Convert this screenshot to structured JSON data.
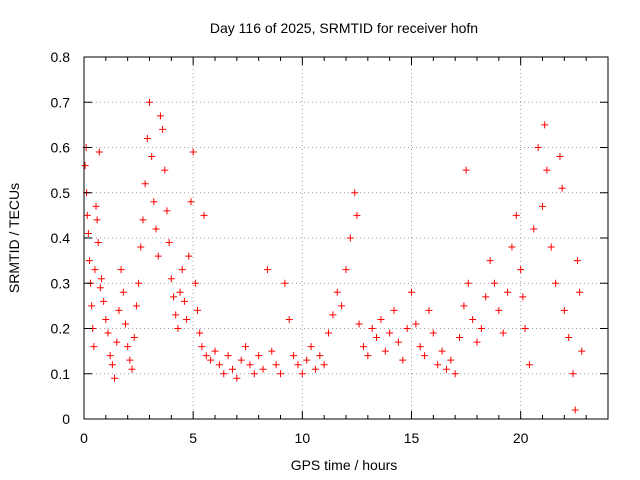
{
  "chart_data": {
    "type": "scatter",
    "title": "Day 116 of 2025, SRMTID for receiver hofn",
    "xlabel": "GPS time / hours",
    "ylabel": "SRMTID / TECUs",
    "xlim": [
      0,
      24
    ],
    "ylim": [
      0,
      0.8
    ],
    "xticks": [
      0,
      5,
      10,
      15,
      20
    ],
    "yticks": [
      0,
      0.1,
      0.2,
      0.3,
      0.4,
      0.5,
      0.6,
      0.7,
      0.8
    ],
    "xtick_labels": [
      "0",
      "5",
      "10",
      "15",
      "20"
    ],
    "ytick_labels": [
      "0",
      "0.1",
      "0.2",
      "0.3",
      "0.4",
      "0.5",
      "0.6",
      "0.7",
      "0.8"
    ],
    "grid": true,
    "marker": "+",
    "color": "#ff0000",
    "series": [
      {
        "name": "SRMTID",
        "points": [
          [
            0.05,
            0.56
          ],
          [
            0.1,
            0.6
          ],
          [
            0.12,
            0.5
          ],
          [
            0.15,
            0.45
          ],
          [
            0.2,
            0.41
          ],
          [
            0.25,
            0.35
          ],
          [
            0.3,
            0.3
          ],
          [
            0.35,
            0.25
          ],
          [
            0.4,
            0.2
          ],
          [
            0.45,
            0.16
          ],
          [
            0.5,
            0.33
          ],
          [
            0.55,
            0.47
          ],
          [
            0.6,
            0.44
          ],
          [
            0.65,
            0.39
          ],
          [
            0.7,
            0.59
          ],
          [
            0.75,
            0.29
          ],
          [
            0.8,
            0.31
          ],
          [
            0.9,
            0.26
          ],
          [
            1.0,
            0.22
          ],
          [
            1.1,
            0.19
          ],
          [
            1.2,
            0.14
          ],
          [
            1.3,
            0.12
          ],
          [
            1.4,
            0.09
          ],
          [
            1.5,
            0.17
          ],
          [
            1.6,
            0.24
          ],
          [
            1.7,
            0.33
          ],
          [
            1.8,
            0.28
          ],
          [
            1.9,
            0.21
          ],
          [
            2.0,
            0.16
          ],
          [
            2.1,
            0.13
          ],
          [
            2.2,
            0.11
          ],
          [
            2.3,
            0.18
          ],
          [
            2.4,
            0.25
          ],
          [
            2.5,
            0.3
          ],
          [
            2.6,
            0.38
          ],
          [
            2.7,
            0.44
          ],
          [
            2.8,
            0.52
          ],
          [
            2.9,
            0.62
          ],
          [
            3.0,
            0.7
          ],
          [
            3.1,
            0.58
          ],
          [
            3.2,
            0.48
          ],
          [
            3.3,
            0.42
          ],
          [
            3.4,
            0.36
          ],
          [
            3.5,
            0.67
          ],
          [
            3.6,
            0.64
          ],
          [
            3.7,
            0.55
          ],
          [
            3.8,
            0.46
          ],
          [
            3.9,
            0.39
          ],
          [
            4.0,
            0.31
          ],
          [
            4.1,
            0.27
          ],
          [
            4.2,
            0.23
          ],
          [
            4.3,
            0.2
          ],
          [
            4.4,
            0.28
          ],
          [
            4.5,
            0.33
          ],
          [
            4.6,
            0.26
          ],
          [
            4.7,
            0.22
          ],
          [
            4.8,
            0.36
          ],
          [
            4.9,
            0.48
          ],
          [
            5.0,
            0.59
          ],
          [
            5.1,
            0.3
          ],
          [
            5.2,
            0.24
          ],
          [
            5.3,
            0.19
          ],
          [
            5.4,
            0.16
          ],
          [
            5.5,
            0.45
          ],
          [
            5.6,
            0.14
          ],
          [
            5.8,
            0.13
          ],
          [
            6.0,
            0.15
          ],
          [
            6.2,
            0.12
          ],
          [
            6.4,
            0.1
          ],
          [
            6.6,
            0.14
          ],
          [
            6.8,
            0.11
          ],
          [
            7.0,
            0.09
          ],
          [
            7.2,
            0.13
          ],
          [
            7.4,
            0.16
          ],
          [
            7.6,
            0.12
          ],
          [
            7.8,
            0.1
          ],
          [
            8.0,
            0.14
          ],
          [
            8.2,
            0.11
          ],
          [
            8.4,
            0.33
          ],
          [
            8.6,
            0.15
          ],
          [
            8.8,
            0.12
          ],
          [
            9.0,
            0.1
          ],
          [
            9.2,
            0.3
          ],
          [
            9.4,
            0.22
          ],
          [
            9.6,
            0.14
          ],
          [
            9.8,
            0.12
          ],
          [
            10.0,
            0.1
          ],
          [
            10.2,
            0.13
          ],
          [
            10.4,
            0.16
          ],
          [
            10.6,
            0.11
          ],
          [
            10.8,
            0.14
          ],
          [
            11.0,
            0.12
          ],
          [
            11.2,
            0.19
          ],
          [
            11.4,
            0.23
          ],
          [
            11.6,
            0.28
          ],
          [
            11.8,
            0.25
          ],
          [
            12.0,
            0.33
          ],
          [
            12.2,
            0.4
          ],
          [
            12.4,
            0.5
          ],
          [
            12.5,
            0.45
          ],
          [
            12.6,
            0.21
          ],
          [
            12.8,
            0.16
          ],
          [
            13.0,
            0.14
          ],
          [
            13.2,
            0.2
          ],
          [
            13.4,
            0.18
          ],
          [
            13.6,
            0.22
          ],
          [
            13.8,
            0.15
          ],
          [
            14.0,
            0.19
          ],
          [
            14.2,
            0.24
          ],
          [
            14.4,
            0.17
          ],
          [
            14.6,
            0.13
          ],
          [
            14.8,
            0.2
          ],
          [
            15.0,
            0.28
          ],
          [
            15.2,
            0.21
          ],
          [
            15.4,
            0.16
          ],
          [
            15.6,
            0.14
          ],
          [
            15.8,
            0.24
          ],
          [
            16.0,
            0.19
          ],
          [
            16.2,
            0.12
          ],
          [
            16.4,
            0.15
          ],
          [
            16.6,
            0.11
          ],
          [
            16.8,
            0.13
          ],
          [
            17.0,
            0.1
          ],
          [
            17.2,
            0.18
          ],
          [
            17.4,
            0.25
          ],
          [
            17.5,
            0.55
          ],
          [
            17.6,
            0.3
          ],
          [
            17.8,
            0.22
          ],
          [
            18.0,
            0.17
          ],
          [
            18.2,
            0.2
          ],
          [
            18.4,
            0.27
          ],
          [
            18.6,
            0.35
          ],
          [
            18.8,
            0.3
          ],
          [
            19.0,
            0.24
          ],
          [
            19.2,
            0.19
          ],
          [
            19.4,
            0.28
          ],
          [
            19.6,
            0.38
          ],
          [
            19.8,
            0.45
          ],
          [
            20.0,
            0.33
          ],
          [
            20.1,
            0.27
          ],
          [
            20.2,
            0.2
          ],
          [
            20.4,
            0.12
          ],
          [
            20.6,
            0.42
          ],
          [
            20.8,
            0.6
          ],
          [
            21.0,
            0.47
          ],
          [
            21.1,
            0.65
          ],
          [
            21.2,
            0.55
          ],
          [
            21.4,
            0.38
          ],
          [
            21.6,
            0.3
          ],
          [
            21.8,
            0.58
          ],
          [
            21.9,
            0.51
          ],
          [
            22.0,
            0.24
          ],
          [
            22.2,
            0.18
          ],
          [
            22.4,
            0.1
          ],
          [
            22.5,
            0.02
          ],
          [
            22.6,
            0.35
          ],
          [
            22.7,
            0.28
          ],
          [
            22.8,
            0.15
          ]
        ]
      }
    ]
  }
}
